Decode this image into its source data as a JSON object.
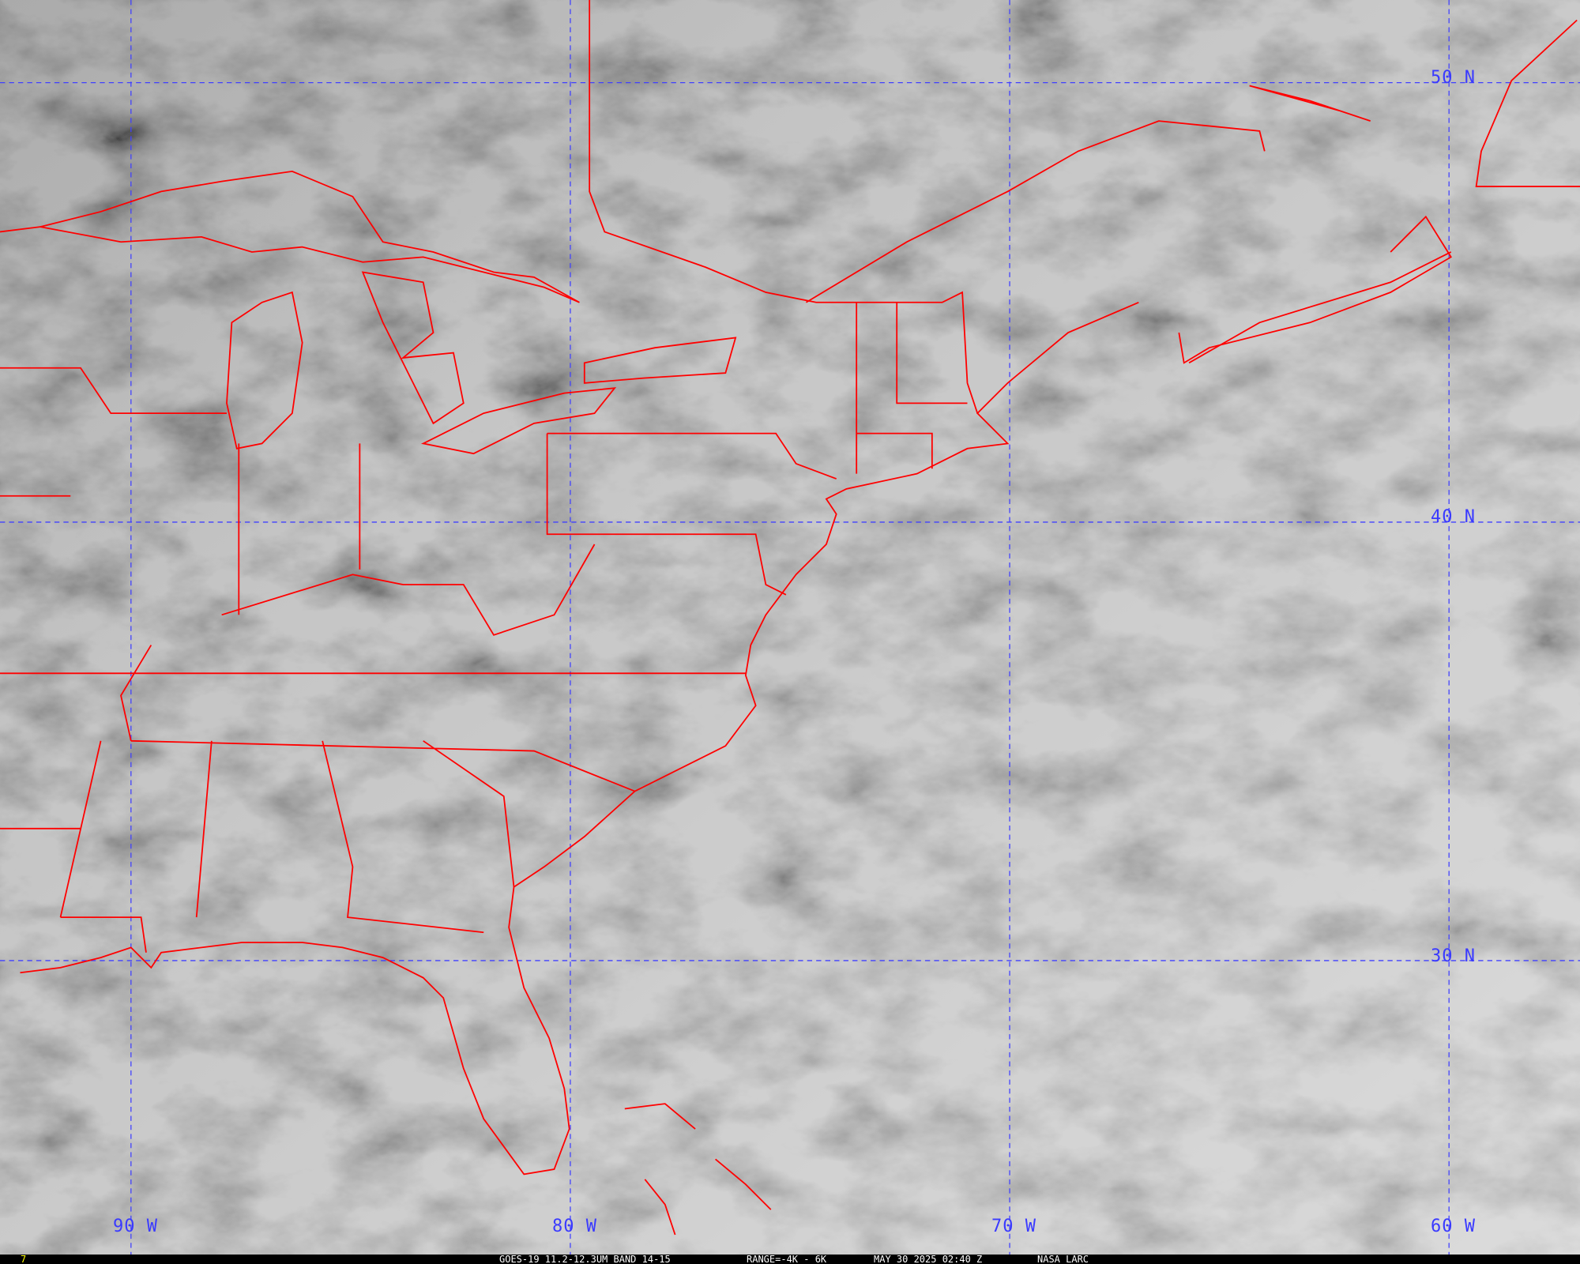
{
  "image": {
    "type": "satellite infrared imagery with political boundaries",
    "colors": {
      "boundaries": "#ff0000",
      "grid": "#3a3aff",
      "labels": "#3a3aff",
      "frame_number": "#ffff00",
      "footer_text": "#ffffff"
    }
  },
  "grid_labels": {
    "latitude": [
      "50 N",
      "40 N",
      "30 N"
    ],
    "longitude": [
      "90 W",
      "80 W",
      "70 W",
      "60 W"
    ]
  },
  "footer": {
    "frame_number": "7",
    "product": "GOES-19 11.2-12.3UM BAND 14-15",
    "range": "RANGE=-4K - 6K",
    "datetime": "MAY 30 2025 02:40 Z",
    "credit": "NASA LARC"
  }
}
